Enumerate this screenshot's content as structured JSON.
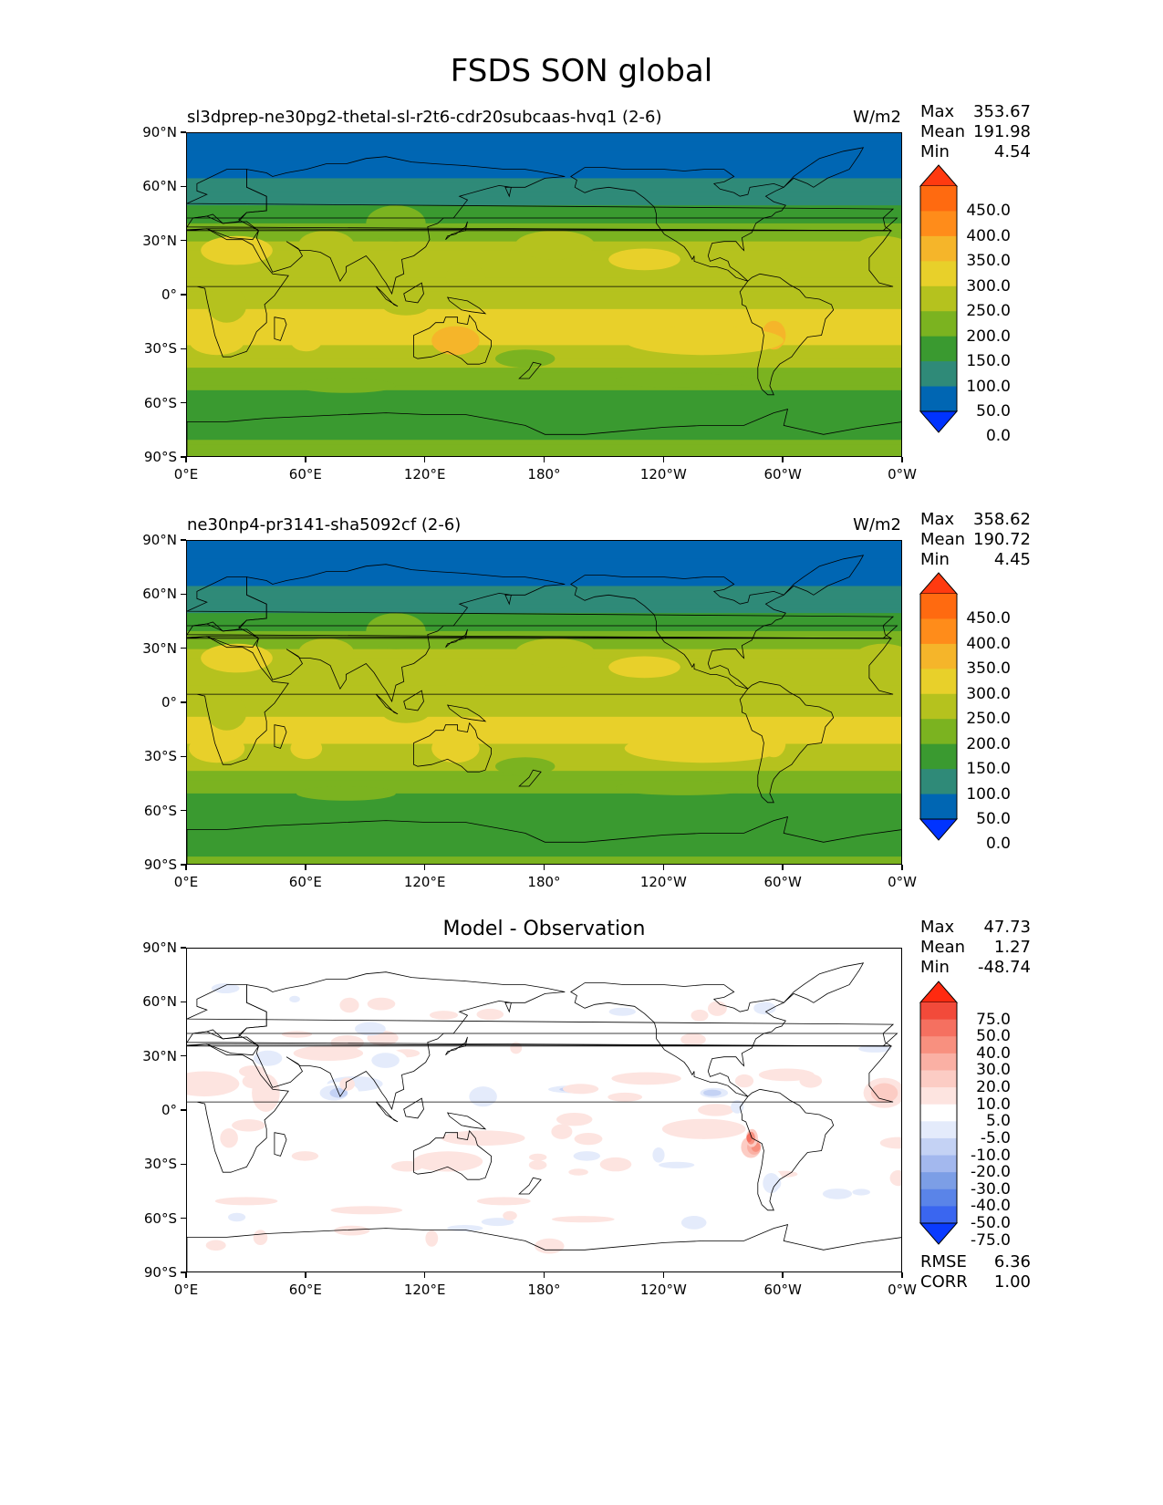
{
  "title": "FSDS SON global",
  "colors": {
    "abs_levels": [
      "#0033ff",
      "#0066b3",
      "#2f8a78",
      "#3a9a30",
      "#7bb320",
      "#b5c21e",
      "#e8d02a",
      "#f5b52a",
      "#ff8c1a",
      "#ff6a10",
      "#ff3a10"
    ],
    "diff_levels": [
      "#0a3bff",
      "#3a66f0",
      "#5a84e8",
      "#7c9ee6",
      "#a3b8ee",
      "#c4d2f4",
      "#e4ebfb",
      "#ffffff",
      "#fde4e0",
      "#fcccc4",
      "#fab0a4",
      "#f8907f",
      "#f57060",
      "#f24a3a",
      "#ff2a10"
    ]
  },
  "chart_data": [
    {
      "type": "heatmap",
      "title": "sl3dprep-ne30pg2-thetal-sl-r2t6-cdr20subcaas-hvq1 (2-6)",
      "units": "W/m2",
      "stats": [
        {
          "label": "Max",
          "value": "353.67"
        },
        {
          "label": "Mean",
          "value": "191.98"
        },
        {
          "label": "Min",
          "value": "4.54"
        }
      ],
      "xticks": [
        "0°E",
        "60°E",
        "120°E",
        "180°",
        "120°W",
        "60°W",
        "0°W"
      ],
      "yticks": [
        "90°N",
        "60°N",
        "30°N",
        "0°",
        "30°S",
        "60°S",
        "90°S"
      ],
      "colorbar_labels": [
        "450.0",
        "400.0",
        "350.0",
        "300.0",
        "250.0",
        "200.0",
        "150.0",
        "100.0",
        "50.0",
        "0.0"
      ],
      "latitude_profile": [
        [
          90,
          5
        ],
        [
          75,
          30
        ],
        [
          60,
          60
        ],
        [
          45,
          120
        ],
        [
          30,
          205
        ],
        [
          15,
          245
        ],
        [
          0,
          235
        ],
        [
          -15,
          265
        ],
        [
          -30,
          245
        ],
        [
          -45,
          175
        ],
        [
          -60,
          120
        ],
        [
          -75,
          145
        ],
        [
          -90,
          160
        ]
      ]
    },
    {
      "type": "heatmap",
      "title": "ne30np4-pr3141-sha5092cf (2-6)",
      "units": "W/m2",
      "stats": [
        {
          "label": "Max",
          "value": "358.62"
        },
        {
          "label": "Mean",
          "value": "190.72"
        },
        {
          "label": "Min",
          "value": "4.45"
        }
      ],
      "xticks": [
        "0°E",
        "60°E",
        "120°E",
        "180°",
        "120°W",
        "60°W",
        "0°W"
      ],
      "yticks": [
        "90°N",
        "60°N",
        "30°N",
        "0°",
        "30°S",
        "60°S",
        "90°S"
      ],
      "colorbar_labels": [
        "450.0",
        "400.0",
        "350.0",
        "300.0",
        "250.0",
        "200.0",
        "150.0",
        "100.0",
        "50.0",
        "0.0"
      ],
      "latitude_profile": [
        [
          90,
          5
        ],
        [
          75,
          30
        ],
        [
          60,
          60
        ],
        [
          45,
          115
        ],
        [
          30,
          200
        ],
        [
          15,
          240
        ],
        [
          0,
          235
        ],
        [
          -15,
          262
        ],
        [
          -30,
          240
        ],
        [
          -45,
          170
        ],
        [
          -60,
          115
        ],
        [
          -75,
          140
        ],
        [
          -90,
          155
        ]
      ]
    },
    {
      "type": "heatmap",
      "title": "Model - Observation",
      "units": "",
      "stats": [
        {
          "label": "Max",
          "value": "47.73"
        },
        {
          "label": "Mean",
          "value": "1.27"
        },
        {
          "label": "Min",
          "value": "-48.74"
        }
      ],
      "extra_stats": [
        {
          "label": "RMSE",
          "value": "6.36"
        },
        {
          "label": "CORR",
          "value": "1.00"
        }
      ],
      "xticks": [
        "0°E",
        "60°E",
        "120°E",
        "180°",
        "120°W",
        "60°W",
        "0°W"
      ],
      "yticks": [
        "90°N",
        "60°N",
        "30°N",
        "0°",
        "30°S",
        "60°S",
        "90°S"
      ],
      "colorbar_labels": [
        "75.0",
        "50.0",
        "40.0",
        "30.0",
        "20.0",
        "10.0",
        "5.0",
        "-5.0",
        "-10.0",
        "-20.0",
        "-30.0",
        "-40.0",
        "-50.0",
        "-75.0"
      ]
    }
  ]
}
